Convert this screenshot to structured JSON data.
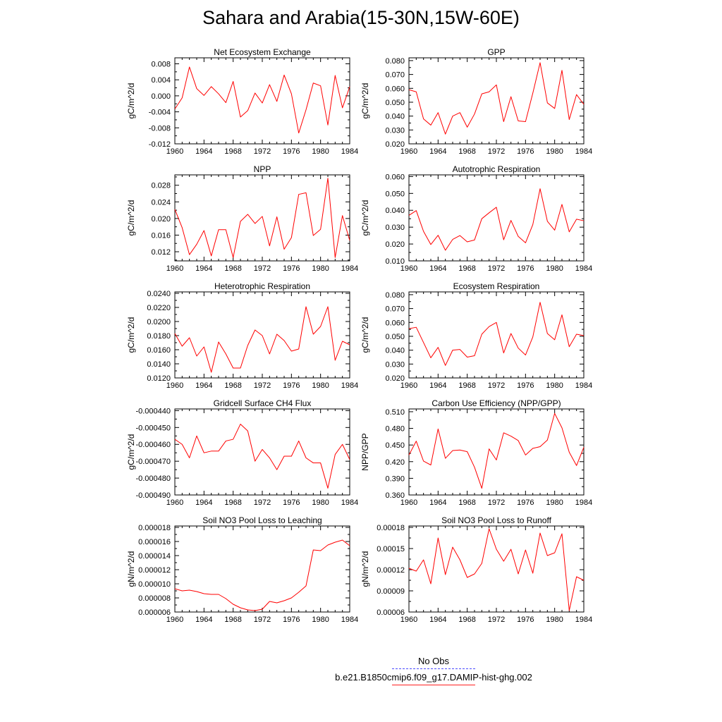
{
  "title": "Sahara and Arabia(15-30N,15W-60E)",
  "legend": {
    "entries": [
      {
        "label": "No Obs",
        "color": "#4a4aff",
        "style": "dashed"
      },
      {
        "label": "b.e21.B1850cmip6.f09_g17.DAMIP-hist-ghg.002",
        "color": "#ff2020",
        "style": "solid"
      }
    ]
  },
  "series_color": "#ff0000",
  "chart_data": [
    {
      "type": "line",
      "title": "Net Ecosystem Exchange",
      "ylabel": "gC/m^2/d",
      "xlim": [
        1960,
        1984
      ],
      "xticks": [
        "1960",
        "1964",
        "1968",
        "1972",
        "1976",
        "1980",
        "1984"
      ],
      "ylim": [
        -0.012,
        0.0095
      ],
      "yticks": [
        {
          "v": 0.008,
          "label": "0.008"
        },
        {
          "v": 0.004,
          "label": "0.004"
        },
        {
          "v": 0.0,
          "label": "0.000"
        },
        {
          "v": -0.004,
          "label": "-0.004"
        },
        {
          "v": -0.008,
          "label": "-0.008"
        },
        {
          "v": -0.012,
          "label": "-0.012"
        }
      ],
      "x": [
        1960,
        1961,
        1962,
        1963,
        1964,
        1965,
        1966,
        1967,
        1968,
        1969,
        1970,
        1971,
        1972,
        1973,
        1974,
        1975,
        1976,
        1977,
        1978,
        1979,
        1980,
        1981,
        1982,
        1983,
        1984
      ],
      "values": [
        -0.0033,
        -0.0005,
        0.0072,
        0.0018,
        0.0001,
        0.0023,
        0.0005,
        -0.0017,
        0.0036,
        -0.0053,
        -0.0037,
        0.0007,
        -0.0018,
        0.0028,
        -0.0014,
        0.0052,
        0.0005,
        -0.0093,
        -0.0035,
        0.0032,
        0.0025,
        -0.0073,
        0.0051,
        -0.003,
        0.0023
      ]
    },
    {
      "type": "line",
      "title": "GPP",
      "ylabel": "gC/m^2/d",
      "xlim": [
        1960,
        1984
      ],
      "xticks": [
        "1960",
        "1964",
        "1968",
        "1972",
        "1976",
        "1980",
        "1984"
      ],
      "ylim": [
        0.02,
        0.082
      ],
      "yticks": [
        {
          "v": 0.08,
          "label": "0.080"
        },
        {
          "v": 0.07,
          "label": "0.070"
        },
        {
          "v": 0.06,
          "label": "0.060"
        },
        {
          "v": 0.05,
          "label": "0.050"
        },
        {
          "v": 0.04,
          "label": "0.040"
        },
        {
          "v": 0.03,
          "label": "0.030"
        },
        {
          "v": 0.02,
          "label": "0.020"
        }
      ],
      "x": [
        1960,
        1961,
        1962,
        1963,
        1964,
        1965,
        1966,
        1967,
        1968,
        1969,
        1970,
        1971,
        1972,
        1973,
        1974,
        1975,
        1976,
        1977,
        1978,
        1979,
        1980,
        1981,
        1982,
        1983,
        1984
      ],
      "values": [
        0.059,
        0.0575,
        0.038,
        0.0335,
        0.0425,
        0.027,
        0.04,
        0.0425,
        0.032,
        0.0415,
        0.056,
        0.0575,
        0.0625,
        0.036,
        0.054,
        0.0365,
        0.036,
        0.0565,
        0.0785,
        0.0495,
        0.0455,
        0.073,
        0.0375,
        0.0555,
        0.0485
      ]
    },
    {
      "type": "line",
      "title": "NPP",
      "ylabel": "gC/m^2/d",
      "xlim": [
        1960,
        1984
      ],
      "xticks": [
        "1960",
        "1964",
        "1968",
        "1972",
        "1976",
        "1980",
        "1984"
      ],
      "ylim": [
        0.0098,
        0.0305
      ],
      "yticks": [
        {
          "v": 0.028,
          "label": "0.028"
        },
        {
          "v": 0.024,
          "label": "0.024"
        },
        {
          "v": 0.02,
          "label": "0.020"
        },
        {
          "v": 0.016,
          "label": "0.016"
        },
        {
          "v": 0.012,
          "label": "0.012"
        }
      ],
      "x": [
        1960,
        1961,
        1962,
        1963,
        1964,
        1965,
        1966,
        1967,
        1968,
        1969,
        1970,
        1971,
        1972,
        1973,
        1974,
        1975,
        1976,
        1977,
        1978,
        1979,
        1980,
        1981,
        1982,
        1983,
        1984
      ],
      "values": [
        0.0222,
        0.0178,
        0.0113,
        0.0138,
        0.0171,
        0.011,
        0.0173,
        0.0173,
        0.0106,
        0.0193,
        0.021,
        0.0188,
        0.0205,
        0.0134,
        0.0204,
        0.0126,
        0.0154,
        0.0258,
        0.0262,
        0.0159,
        0.0174,
        0.0297,
        0.0106,
        0.0207,
        0.0147
      ]
    },
    {
      "type": "line",
      "title": "Autotrophic Respiration",
      "ylabel": "gC/m^2/d",
      "xlim": [
        1960,
        1984
      ],
      "xticks": [
        "1960",
        "1964",
        "1968",
        "1972",
        "1976",
        "1980",
        "1984"
      ],
      "ylim": [
        0.01,
        0.061
      ],
      "yticks": [
        {
          "v": 0.06,
          "label": "0.060"
        },
        {
          "v": 0.05,
          "label": "0.050"
        },
        {
          "v": 0.04,
          "label": "0.040"
        },
        {
          "v": 0.03,
          "label": "0.030"
        },
        {
          "v": 0.02,
          "label": "0.020"
        },
        {
          "v": 0.01,
          "label": "0.010"
        }
      ],
      "x": [
        1960,
        1961,
        1962,
        1963,
        1964,
        1965,
        1966,
        1967,
        1968,
        1969,
        1970,
        1971,
        1972,
        1973,
        1974,
        1975,
        1976,
        1977,
        1978,
        1979,
        1980,
        1981,
        1982,
        1983,
        1984
      ],
      "values": [
        0.037,
        0.0398,
        0.0275,
        0.0197,
        0.0252,
        0.0163,
        0.0227,
        0.025,
        0.0213,
        0.0224,
        0.035,
        0.0385,
        0.0418,
        0.0225,
        0.034,
        0.0245,
        0.0207,
        0.0315,
        0.0528,
        0.0335,
        0.0282,
        0.0435,
        0.0272,
        0.0347,
        0.0338
      ]
    },
    {
      "type": "line",
      "title": "Heterotrophic Respiration",
      "ylabel": "gC/m^2/d",
      "xlim": [
        1960,
        1984
      ],
      "xticks": [
        "1960",
        "1964",
        "1968",
        "1972",
        "1976",
        "1980",
        "1984"
      ],
      "ylim": [
        0.012,
        0.0242
      ],
      "yticks": [
        {
          "v": 0.024,
          "label": "0.0240"
        },
        {
          "v": 0.022,
          "label": "0.0220"
        },
        {
          "v": 0.02,
          "label": "0.0200"
        },
        {
          "v": 0.018,
          "label": "0.0180"
        },
        {
          "v": 0.016,
          "label": "0.0160"
        },
        {
          "v": 0.014,
          "label": "0.0140"
        },
        {
          "v": 0.012,
          "label": "0.0120"
        }
      ],
      "x": [
        1960,
        1961,
        1962,
        1963,
        1964,
        1965,
        1966,
        1967,
        1968,
        1969,
        1970,
        1971,
        1972,
        1973,
        1974,
        1975,
        1976,
        1977,
        1978,
        1979,
        1980,
        1981,
        1982,
        1983,
        1984
      ],
      "values": [
        0.0183,
        0.0165,
        0.0177,
        0.0151,
        0.0164,
        0.0128,
        0.0171,
        0.0154,
        0.0134,
        0.0134,
        0.0166,
        0.0188,
        0.018,
        0.0154,
        0.0182,
        0.0173,
        0.0158,
        0.0161,
        0.0221,
        0.0182,
        0.0193,
        0.0221,
        0.0145,
        0.0172,
        0.0167
      ]
    },
    {
      "type": "line",
      "title": "Ecosystem Respiration",
      "ylabel": "gC/m^2/d",
      "xlim": [
        1960,
        1984
      ],
      "xticks": [
        "1960",
        "1964",
        "1968",
        "1972",
        "1976",
        "1980",
        "1984"
      ],
      "ylim": [
        0.02,
        0.082
      ],
      "yticks": [
        {
          "v": 0.08,
          "label": "0.080"
        },
        {
          "v": 0.07,
          "label": "0.070"
        },
        {
          "v": 0.06,
          "label": "0.060"
        },
        {
          "v": 0.05,
          "label": "0.050"
        },
        {
          "v": 0.04,
          "label": "0.040"
        },
        {
          "v": 0.03,
          "label": "0.030"
        },
        {
          "v": 0.02,
          "label": "0.020"
        }
      ],
      "x": [
        1960,
        1961,
        1962,
        1963,
        1964,
        1965,
        1966,
        1967,
        1968,
        1969,
        1970,
        1971,
        1972,
        1973,
        1974,
        1975,
        1976,
        1977,
        1978,
        1979,
        1980,
        1981,
        1982,
        1983,
        1984
      ],
      "values": [
        0.0555,
        0.0565,
        0.0455,
        0.0345,
        0.042,
        0.029,
        0.04,
        0.0405,
        0.035,
        0.036,
        0.0515,
        0.057,
        0.06,
        0.038,
        0.052,
        0.0415,
        0.0365,
        0.0495,
        0.0745,
        0.052,
        0.0475,
        0.0655,
        0.0425,
        0.0515,
        0.0505
      ]
    },
    {
      "type": "line",
      "title": "Gridcell Surface CH4 Flux",
      "ylabel": "gC/m^2/d",
      "xlim": [
        1960,
        1984
      ],
      "xticks": [
        "1960",
        "1964",
        "1968",
        "1972",
        "1976",
        "1980",
        "1984"
      ],
      "ylim": [
        -0.00049,
        -0.000439
      ],
      "yticks": [
        {
          "v": -0.00044,
          "label": "-0.000440"
        },
        {
          "v": -0.00045,
          "label": "-0.000450"
        },
        {
          "v": -0.00046,
          "label": "-0.000460"
        },
        {
          "v": -0.00047,
          "label": "-0.000470"
        },
        {
          "v": -0.00048,
          "label": "-0.000480"
        },
        {
          "v": -0.00049,
          "label": "-0.000490"
        }
      ],
      "x": [
        1960,
        1961,
        1962,
        1963,
        1964,
        1965,
        1966,
        1967,
        1968,
        1969,
        1970,
        1971,
        1972,
        1973,
        1974,
        1975,
        1976,
        1977,
        1978,
        1979,
        1980,
        1981,
        1982,
        1983,
        1984
      ],
      "values": [
        -0.000457,
        -0.00046,
        -0.000468,
        -0.000455,
        -0.000465,
        -0.000464,
        -0.000464,
        -0.000458,
        -0.000457,
        -0.000448,
        -0.000452,
        -0.00047,
        -0.000463,
        -0.000468,
        -0.000475,
        -0.000467,
        -0.000467,
        -0.000458,
        -0.000468,
        -0.000471,
        -0.000471,
        -0.000486,
        -0.000466,
        -0.00046,
        -0.000469
      ]
    },
    {
      "type": "line",
      "title": "Carbon Use Efficiency (NPP/GPP)",
      "ylabel": "NPP/GPP",
      "xlim": [
        1960,
        1984
      ],
      "xticks": [
        "1960",
        "1964",
        "1968",
        "1972",
        "1976",
        "1980",
        "1984"
      ],
      "ylim": [
        0.36,
        0.515
      ],
      "yticks": [
        {
          "v": 0.51,
          "label": "0.510"
        },
        {
          "v": 0.48,
          "label": "0.480"
        },
        {
          "v": 0.45,
          "label": "0.450"
        },
        {
          "v": 0.42,
          "label": "0.420"
        },
        {
          "v": 0.39,
          "label": "0.390"
        },
        {
          "v": 0.36,
          "label": "0.360"
        }
      ],
      "x": [
        1960,
        1961,
        1962,
        1963,
        1964,
        1965,
        1966,
        1967,
        1968,
        1969,
        1970,
        1971,
        1972,
        1973,
        1974,
        1975,
        1976,
        1977,
        1978,
        1979,
        1980,
        1981,
        1982,
        1983,
        1984
      ],
      "values": [
        0.432,
        0.457,
        0.421,
        0.414,
        0.479,
        0.426,
        0.44,
        0.441,
        0.438,
        0.41,
        0.372,
        0.443,
        0.423,
        0.472,
        0.466,
        0.458,
        0.432,
        0.444,
        0.447,
        0.459,
        0.507,
        0.481,
        0.437,
        0.413,
        0.446
      ]
    },
    {
      "type": "line",
      "title": "Soil NO3 Pool Loss to Leaching",
      "ylabel": "gN/m^2/d",
      "xlim": [
        1960,
        1984
      ],
      "xticks": [
        "1960",
        "1964",
        "1968",
        "1972",
        "1976",
        "1980",
        "1984"
      ],
      "ylim": [
        6e-06,
        1.82e-05
      ],
      "yticks": [
        {
          "v": 1.8e-05,
          "label": "0.000018"
        },
        {
          "v": 1.6e-05,
          "label": "0.000016"
        },
        {
          "v": 1.4e-05,
          "label": "0.000014"
        },
        {
          "v": 1.2e-05,
          "label": "0.000012"
        },
        {
          "v": 1e-05,
          "label": "0.000010"
        },
        {
          "v": 8e-06,
          "label": "0.000008"
        },
        {
          "v": 6e-06,
          "label": "0.000006"
        }
      ],
      "x": [
        1960,
        1961,
        1962,
        1963,
        1964,
        1965,
        1966,
        1967,
        1968,
        1969,
        1970,
        1971,
        1972,
        1973,
        1974,
        1975,
        1976,
        1977,
        1978,
        1979,
        1980,
        1981,
        1982,
        1983,
        1984
      ],
      "values": [
        9.3e-06,
        9e-06,
        9.1e-06,
        8.9e-06,
        8.6e-06,
        8.5e-06,
        8.5e-06,
        7.9e-06,
        7.1e-06,
        6.6e-06,
        6.3e-06,
        6.2e-06,
        6.4e-06,
        7.5e-06,
        7.3e-06,
        7.6e-06,
        8e-06,
        8.8e-06,
        9.7e-06,
        1.48e-05,
        1.47e-05,
        1.55e-05,
        1.59e-05,
        1.62e-05,
        1.54e-05
      ]
    },
    {
      "type": "line",
      "title": "Soil NO3 Pool Loss to Runoff",
      "ylabel": "gN/m^2/d",
      "xlim": [
        1960,
        1984
      ],
      "xticks": [
        "1960",
        "1964",
        "1968",
        "1972",
        "1976",
        "1980",
        "1984"
      ],
      "ylim": [
        6e-05,
        0.000182
      ],
      "yticks": [
        {
          "v": 0.00018,
          "label": "0.00018"
        },
        {
          "v": 0.00015,
          "label": "0.00015"
        },
        {
          "v": 0.00012,
          "label": "0.00012"
        },
        {
          "v": 9e-05,
          "label": "0.00009"
        },
        {
          "v": 6e-05,
          "label": "0.00006"
        }
      ],
      "x": [
        1960,
        1961,
        1962,
        1963,
        1964,
        1965,
        1966,
        1967,
        1968,
        1969,
        1970,
        1971,
        1972,
        1973,
        1974,
        1975,
        1976,
        1977,
        1978,
        1979,
        1980,
        1981,
        1982,
        1983,
        1984
      ],
      "values": [
        0.000122,
        0.000118,
        0.000134,
        0.0001,
        0.000165,
        0.000113,
        0.000152,
        0.000134,
        0.000109,
        0.000114,
        0.000129,
        0.000178,
        0.000149,
        0.000132,
        0.000149,
        0.000114,
        0.000148,
        0.000115,
        0.000172,
        0.00014,
        0.000144,
        0.000171,
        6.2e-05,
        0.00011,
        0.000105
      ]
    }
  ]
}
